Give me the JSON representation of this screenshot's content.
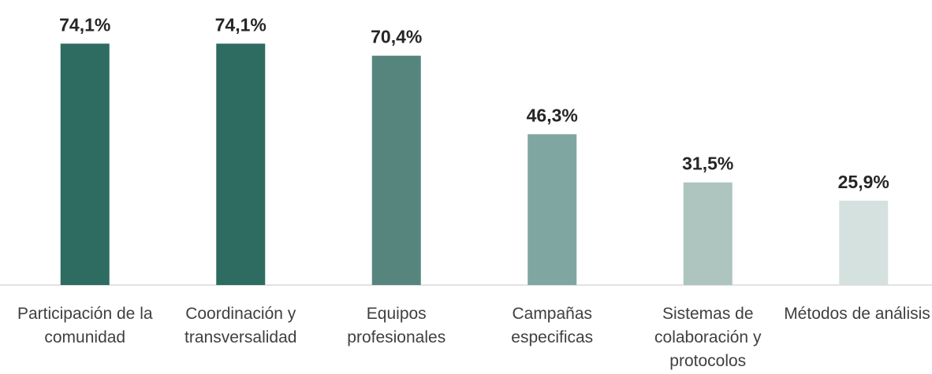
{
  "chart_data": {
    "type": "bar",
    "categories": [
      "Participación de la comunidad",
      "Coordinación y transversalidad",
      "Equipos profesionales",
      "Campañas especificas",
      "Sistemas de colaboración y protocolos",
      "Métodos de análisis"
    ],
    "values": [
      74.1,
      74.1,
      70.4,
      46.3,
      31.5,
      25.9
    ],
    "value_labels": [
      "74,1%",
      "74,1%",
      "70,4%",
      "46,3%",
      "31,5%",
      "25,9%"
    ],
    "colors": [
      "#2e6b61",
      "#2e6b61",
      "#56857e",
      "#80a6a1",
      "#adc4bf",
      "#d5e1de"
    ],
    "ylim": [
      0,
      80
    ]
  }
}
